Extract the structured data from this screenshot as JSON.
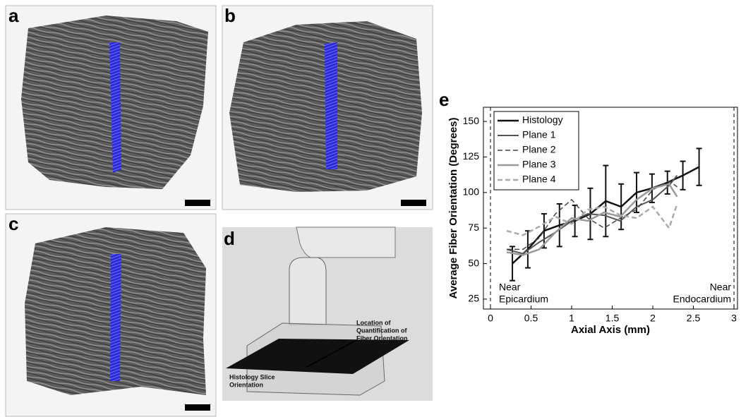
{
  "panels": {
    "a": "a",
    "b": "b",
    "c": "c",
    "d": "d",
    "e": "e"
  },
  "diagram": {
    "location_label": [
      "Location of",
      "Quantification of",
      "Fiber Orientation"
    ],
    "slice_label": [
      "Histology Slice",
      "Orientation"
    ]
  },
  "chart_data": {
    "type": "line",
    "xlabel": "Axial Axis (mm)",
    "ylabel": "Average Fiber Orientation (Degrees)",
    "xlim": [
      -0.087,
      3.043
    ],
    "ylim": [
      18,
      160
    ],
    "xticks": [
      0,
      0.5,
      1,
      1.5,
      2,
      2.5,
      3
    ],
    "yticks": [
      25,
      50,
      75,
      100,
      125,
      150
    ],
    "legend": "top-left",
    "vlines": [
      0,
      3
    ],
    "annotations": [
      {
        "x": 0,
        "lines": [
          "Near",
          "Epicardium"
        ]
      },
      {
        "x": 3,
        "lines": [
          "Near",
          "Endocardium"
        ]
      }
    ],
    "series": [
      {
        "name": "Histology",
        "color": "#111111",
        "dash": false,
        "width": 2.5,
        "x": [
          0.27,
          0.46,
          0.66,
          0.85,
          1.04,
          1.23,
          1.42,
          1.61,
          1.8,
          1.99,
          2.18,
          2.37,
          2.57
        ],
        "values": [
          50,
          60,
          73,
          77,
          80,
          85,
          94,
          90,
          100,
          103,
          107,
          112,
          118
        ],
        "errors": [
          12,
          13,
          12,
          15,
          11,
          18,
          25,
          16,
          14,
          10,
          8,
          10,
          13
        ]
      },
      {
        "name": "Plane 1",
        "color": "#555555",
        "dash": false,
        "width": 2,
        "x": [
          0.2,
          0.4,
          0.6,
          0.8,
          1.0,
          1.2,
          1.4,
          1.6,
          1.8,
          2.0,
          2.2,
          2.3
        ],
        "values": [
          60,
          57,
          65,
          72,
          80,
          85,
          84,
          80,
          90,
          95,
          105,
          112
        ]
      },
      {
        "name": "Plane 2",
        "color": "#444444",
        "dash": true,
        "width": 1.5,
        "x": [
          0.2,
          0.4,
          0.6,
          0.8,
          1.0,
          1.2,
          1.4,
          1.6,
          1.8,
          2.0,
          2.2,
          2.3
        ],
        "values": [
          60,
          60,
          68,
          85,
          95,
          82,
          75,
          82,
          88,
          102,
          108,
          104
        ]
      },
      {
        "name": "Plane 3",
        "color": "#999999",
        "dash": false,
        "width": 2.5,
        "x": [
          0.2,
          0.4,
          0.6,
          0.8,
          1.0,
          1.2,
          1.4,
          1.6,
          1.8,
          2.0,
          2.2,
          2.3
        ],
        "values": [
          58,
          56,
          60,
          72,
          82,
          80,
          86,
          83,
          95,
          103,
          106,
          97
        ]
      },
      {
        "name": "Plane 4",
        "color": "#aaaaaa",
        "dash": true,
        "width": 2.5,
        "x": [
          0.2,
          0.4,
          0.6,
          0.8,
          1.0,
          1.2,
          1.4,
          1.6,
          1.8,
          2.0,
          2.2,
          2.3
        ],
        "values": [
          73,
          70,
          76,
          83,
          78,
          88,
          90,
          84,
          82,
          90,
          75,
          92
        ]
      }
    ]
  }
}
